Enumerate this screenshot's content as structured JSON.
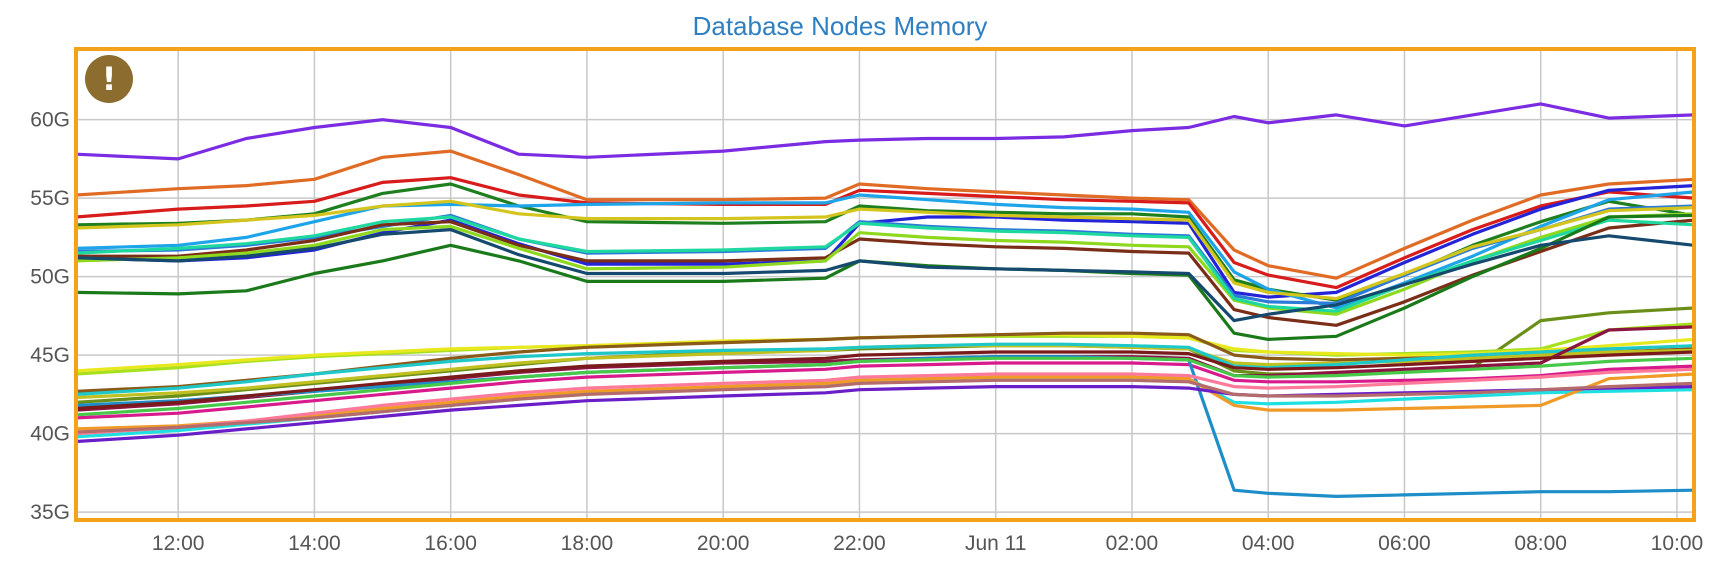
{
  "chart_data": {
    "type": "line",
    "title": "Database Nodes Memory",
    "xlabel": "",
    "ylabel": "",
    "y_unit": "G",
    "ylim": [
      34.5,
      64.5
    ],
    "xlim": [
      "2024-06-10T10:30",
      "2024-06-11T10:15"
    ],
    "yticks": [
      {
        "value": 35,
        "label": "35G"
      },
      {
        "value": 40,
        "label": "40G"
      },
      {
        "value": 45,
        "label": "45G"
      },
      {
        "value": 50,
        "label": "50G"
      },
      {
        "value": 55,
        "label": "55G"
      },
      {
        "value": 60,
        "label": "60G"
      }
    ],
    "xticks": [
      {
        "value": "2024-06-10T12:00",
        "label": "12:00"
      },
      {
        "value": "2024-06-10T14:00",
        "label": "14:00"
      },
      {
        "value": "2024-06-10T16:00",
        "label": "16:00"
      },
      {
        "value": "2024-06-10T18:00",
        "label": "18:00"
      },
      {
        "value": "2024-06-10T20:00",
        "label": "20:00"
      },
      {
        "value": "2024-06-10T22:00",
        "label": "22:00"
      },
      {
        "value": "2024-06-11T00:00",
        "label": "Jun 11"
      },
      {
        "value": "2024-06-11T02:00",
        "label": "02:00"
      },
      {
        "value": "2024-06-11T04:00",
        "label": "04:00"
      },
      {
        "value": "2024-06-11T06:00",
        "label": "06:00"
      },
      {
        "value": "2024-06-11T08:00",
        "label": "08:00"
      },
      {
        "value": "2024-06-11T10:00",
        "label": "10:00"
      }
    ],
    "grid": true,
    "legend": "none",
    "x": [
      "2024-06-10T10:30",
      "2024-06-10T12:00",
      "2024-06-10T13:00",
      "2024-06-10T14:00",
      "2024-06-10T15:00",
      "2024-06-10T16:00",
      "2024-06-10T17:00",
      "2024-06-10T18:00",
      "2024-06-10T20:00",
      "2024-06-10T21:30",
      "2024-06-10T22:00",
      "2024-06-10T23:00",
      "2024-06-11T00:00",
      "2024-06-11T01:00",
      "2024-06-11T02:00",
      "2024-06-11T02:50",
      "2024-06-11T03:30",
      "2024-06-11T04:00",
      "2024-06-11T05:00",
      "2024-06-11T06:00",
      "2024-06-11T07:00",
      "2024-06-11T08:00",
      "2024-06-11T09:00",
      "2024-06-11T10:15"
    ],
    "series": [
      {
        "color": "#7b2be2",
        "values": [
          57.8,
          57.5,
          58.8,
          59.5,
          60.0,
          59.5,
          57.8,
          57.6,
          58.0,
          58.6,
          58.7,
          58.8,
          58.8,
          58.9,
          59.3,
          59.5,
          60.2,
          59.8,
          60.3,
          59.6,
          60.3,
          61.0,
          60.1,
          60.3
        ]
      },
      {
        "color": "#e06b24",
        "values": [
          55.2,
          55.6,
          55.8,
          56.2,
          57.6,
          58.0,
          56.5,
          54.9,
          54.9,
          55.0,
          55.9,
          55.6,
          55.4,
          55.2,
          55.0,
          54.9,
          51.7,
          50.7,
          49.9,
          51.8,
          53.6,
          55.2,
          55.9,
          56.2
        ]
      },
      {
        "color": "#d81b1b",
        "values": [
          53.8,
          54.3,
          54.5,
          54.8,
          56.0,
          56.3,
          55.2,
          54.7,
          54.6,
          54.6,
          55.5,
          55.3,
          55.1,
          54.9,
          54.8,
          54.7,
          50.9,
          50.1,
          49.3,
          51.2,
          53.0,
          54.5,
          55.4,
          55.0
        ]
      },
      {
        "color": "#2323d8",
        "values": [
          51.2,
          51.0,
          51.2,
          51.7,
          52.8,
          53.6,
          52.1,
          50.8,
          50.8,
          51.0,
          53.4,
          53.8,
          53.8,
          53.6,
          53.5,
          53.4,
          49.0,
          48.7,
          49.0,
          50.9,
          52.7,
          54.3,
          55.5,
          55.8
        ]
      },
      {
        "color": "#1e7f1e",
        "values": [
          53.3,
          53.4,
          53.6,
          54.0,
          55.3,
          55.9,
          54.5,
          53.5,
          53.4,
          53.5,
          54.5,
          54.2,
          54.1,
          54.0,
          54.0,
          53.8,
          49.8,
          49.2,
          48.5,
          50.1,
          52.0,
          53.5,
          54.8,
          53.9
        ]
      },
      {
        "color": "#1ea4e8",
        "values": [
          51.8,
          52.0,
          52.5,
          53.5,
          54.5,
          54.6,
          54.5,
          54.6,
          54.7,
          54.7,
          55.2,
          54.9,
          54.6,
          54.4,
          54.3,
          54.1,
          50.3,
          49.2,
          48.0,
          49.6,
          51.3,
          53.2,
          54.9,
          55.4
        ]
      },
      {
        "color": "#2d7bd8",
        "values": [
          51.6,
          51.7,
          52.0,
          52.5,
          53.2,
          53.9,
          52.4,
          51.5,
          51.6,
          51.8,
          53.5,
          53.2,
          53.0,
          52.9,
          52.7,
          52.6,
          48.8,
          48.4,
          48.3,
          50.1,
          51.8,
          53.0,
          54.3,
          54.5
        ]
      },
      {
        "color": "#d4c51e",
        "values": [
          53.1,
          53.3,
          53.6,
          53.9,
          54.5,
          54.8,
          54.0,
          53.7,
          53.7,
          53.8,
          54.3,
          54.1,
          53.9,
          53.8,
          53.7,
          53.6,
          49.6,
          49.0,
          48.6,
          50.2,
          51.9,
          53.0,
          54.2,
          54.4
        ]
      },
      {
        "color": "#7a2e18",
        "values": [
          51.3,
          51.3,
          51.7,
          52.3,
          53.3,
          53.5,
          52.0,
          51.0,
          51.0,
          51.2,
          52.4,
          52.1,
          51.9,
          51.8,
          51.6,
          51.5,
          47.9,
          47.4,
          46.9,
          48.4,
          50.1,
          51.6,
          53.1,
          53.6
        ]
      },
      {
        "color": "#8ed81e",
        "values": [
          51.0,
          51.2,
          51.5,
          52.0,
          53.0,
          53.2,
          51.8,
          50.5,
          50.6,
          51.0,
          52.8,
          52.5,
          52.3,
          52.2,
          52.0,
          51.9,
          48.5,
          48.0,
          47.6,
          49.2,
          51.0,
          52.5,
          53.8,
          54.0
        ]
      },
      {
        "color": "#1ed8a0",
        "values": [
          51.5,
          51.8,
          52.1,
          52.6,
          53.5,
          53.8,
          52.4,
          51.6,
          51.7,
          51.9,
          53.4,
          53.1,
          52.9,
          52.8,
          52.6,
          52.5,
          48.6,
          48.1,
          47.8,
          49.5,
          51.0,
          52.3,
          53.6,
          53.3
        ]
      },
      {
        "color": "#1a7a1a",
        "values": [
          49.0,
          48.9,
          49.1,
          50.2,
          51.0,
          52.0,
          51.0,
          49.7,
          49.7,
          49.9,
          51.0,
          50.7,
          50.5,
          50.4,
          50.2,
          50.1,
          46.4,
          46.0,
          46.2,
          48.0,
          50.0,
          51.8,
          53.8,
          53.9
        ]
      },
      {
        "color": "#154a6e",
        "values": [
          51.2,
          51.0,
          51.3,
          51.8,
          52.7,
          53.0,
          51.4,
          50.2,
          50.2,
          50.4,
          51.0,
          50.6,
          50.5,
          50.4,
          50.3,
          50.2,
          47.2,
          47.6,
          48.2,
          49.5,
          50.8,
          52.0,
          52.6,
          52.0
        ]
      },
      {
        "color": "#6a8f18",
        "values": [
          42.0,
          42.4,
          42.8,
          43.2,
          43.6,
          44.0,
          44.4,
          44.8,
          45.2,
          45.3,
          45.4,
          45.5,
          45.6,
          45.6,
          45.5,
          45.4,
          44.0,
          43.8,
          43.8,
          44.0,
          44.2,
          47.2,
          47.7,
          48.0
        ]
      },
      {
        "color": "#a6e01e",
        "values": [
          43.8,
          44.2,
          44.6,
          44.9,
          45.1,
          45.3,
          45.5,
          45.6,
          45.8,
          46.0,
          46.1,
          46.2,
          46.2,
          46.2,
          46.2,
          46.1,
          45.3,
          45.2,
          45.0,
          45.1,
          45.2,
          45.4,
          46.6,
          47.0
        ]
      },
      {
        "color": "#e8e81e",
        "values": [
          44.0,
          44.4,
          44.7,
          45.0,
          45.2,
          45.4,
          45.5,
          45.6,
          45.9,
          46.0,
          46.1,
          46.2,
          46.3,
          46.3,
          46.2,
          46.1,
          45.4,
          45.2,
          45.1,
          45.0,
          45.1,
          45.3,
          45.6,
          46.0
        ]
      },
      {
        "color": "#8a5a18",
        "values": [
          42.7,
          43.0,
          43.4,
          43.8,
          44.3,
          44.8,
          45.2,
          45.5,
          45.8,
          46.0,
          46.1,
          46.2,
          46.3,
          46.4,
          46.4,
          46.3,
          45.0,
          44.8,
          44.7,
          44.8,
          44.9,
          45.0,
          45.2,
          45.4
        ]
      },
      {
        "color": "#c0c020",
        "values": [
          42.3,
          42.6,
          42.9,
          43.3,
          43.7,
          44.1,
          44.5,
          44.8,
          45.1,
          45.3,
          45.5,
          45.6,
          45.6,
          45.6,
          45.5,
          45.4,
          44.5,
          44.4,
          44.5,
          44.6,
          44.8,
          45.0,
          45.2,
          45.3
        ]
      },
      {
        "color": "#1ec8c8",
        "values": [
          42.5,
          42.9,
          43.3,
          43.8,
          44.2,
          44.6,
          44.9,
          45.1,
          45.3,
          45.4,
          45.5,
          45.6,
          45.7,
          45.7,
          45.6,
          45.5,
          44.3,
          44.2,
          44.4,
          44.7,
          45.0,
          45.2,
          45.4,
          45.6
        ]
      },
      {
        "color": "#8b1540",
        "values": [
          41.5,
          41.9,
          42.3,
          42.7,
          43.1,
          43.5,
          43.9,
          44.2,
          44.5,
          44.6,
          44.7,
          44.8,
          44.9,
          44.9,
          44.9,
          44.8,
          43.7,
          43.7,
          43.9,
          44.1,
          44.3,
          44.5,
          46.6,
          46.8
        ]
      },
      {
        "color": "#d81b8c",
        "values": [
          41.0,
          41.3,
          41.7,
          42.1,
          42.5,
          42.9,
          43.3,
          43.6,
          43.9,
          44.1,
          44.3,
          44.4,
          44.5,
          44.5,
          44.5,
          44.4,
          43.4,
          43.3,
          43.3,
          43.4,
          43.5,
          43.7,
          44.1,
          44.3
        ]
      },
      {
        "color": "#1e8ec8",
        "values": [
          41.8,
          42.1,
          42.4,
          42.7,
          43.0,
          43.3,
          43.6,
          43.9,
          44.2,
          44.4,
          44.6,
          44.8,
          44.9,
          44.9,
          44.8,
          44.7,
          36.4,
          36.2,
          36.0,
          36.1,
          36.2,
          36.3,
          36.3,
          36.4
        ]
      },
      {
        "color": "#1ee0e0",
        "values": [
          39.8,
          40.2,
          40.6,
          41.0,
          41.4,
          41.8,
          42.2,
          42.6,
          43.0,
          43.2,
          43.4,
          43.5,
          43.6,
          43.6,
          43.6,
          43.5,
          42.0,
          41.9,
          42.0,
          42.2,
          42.4,
          42.6,
          42.7,
          42.8
        ]
      },
      {
        "color": "#f09a28",
        "values": [
          40.3,
          40.5,
          40.8,
          41.2,
          41.6,
          42.0,
          42.4,
          42.7,
          43.0,
          43.2,
          43.4,
          43.5,
          43.6,
          43.6,
          43.6,
          43.5,
          41.8,
          41.5,
          41.5,
          41.6,
          41.7,
          41.8,
          43.5,
          43.8
        ]
      },
      {
        "color": "#6a1ec8",
        "values": [
          39.5,
          39.9,
          40.3,
          40.7,
          41.1,
          41.5,
          41.8,
          42.1,
          42.4,
          42.6,
          42.8,
          42.9,
          43.0,
          43.0,
          43.0,
          42.9,
          42.5,
          42.4,
          42.5,
          42.6,
          42.7,
          42.8,
          42.9,
          43.0
        ]
      },
      {
        "color": "#ff7a9a",
        "values": [
          40.0,
          40.4,
          40.8,
          41.3,
          41.8,
          42.2,
          42.6,
          42.9,
          43.2,
          43.4,
          43.6,
          43.7,
          43.8,
          43.8,
          43.8,
          43.7,
          43.0,
          42.9,
          43.0,
          43.2,
          43.4,
          43.6,
          43.9,
          44.1
        ]
      },
      {
        "color": "#48c848",
        "values": [
          41.2,
          41.6,
          42.0,
          42.4,
          42.8,
          43.2,
          43.6,
          43.9,
          44.2,
          44.4,
          44.6,
          44.7,
          44.8,
          44.8,
          44.8,
          44.7,
          43.7,
          43.6,
          43.7,
          43.9,
          44.1,
          44.3,
          44.6,
          44.8
        ]
      },
      {
        "color": "#b46b6b",
        "values": [
          40.1,
          40.4,
          40.7,
          41.0,
          41.4,
          41.8,
          42.2,
          42.5,
          42.8,
          43.0,
          43.2,
          43.3,
          43.4,
          43.4,
          43.4,
          43.3,
          42.5,
          42.4,
          42.4,
          42.5,
          42.6,
          42.8,
          43.0,
          43.2
        ]
      },
      {
        "color": "#7a1a1a",
        "values": [
          41.6,
          42.0,
          42.4,
          42.8,
          43.2,
          43.6,
          44.0,
          44.3,
          44.6,
          44.8,
          45.0,
          45.1,
          45.2,
          45.2,
          45.2,
          45.1,
          44.2,
          44.1,
          44.2,
          44.4,
          44.6,
          44.8,
          45.0,
          45.2
        ]
      }
    ]
  },
  "alert": {
    "icon": "exclamation-icon",
    "color": "#8c6d2f",
    "glyph": "!"
  },
  "frame": {
    "border_color": "#f5a21b"
  }
}
